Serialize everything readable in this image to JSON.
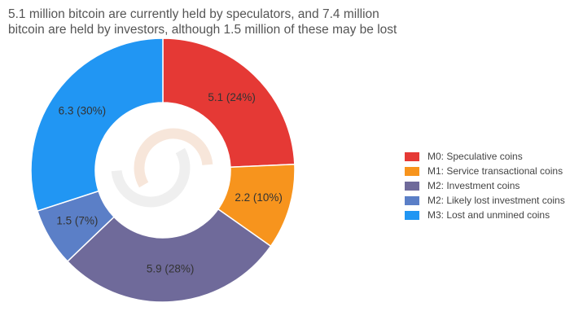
{
  "title": {
    "line1": "5.1 million bitcoin are currently held by speculators, and 7.4 million",
    "line2": "bitcoin are held by investors, although 1.5 million of these may be lost"
  },
  "chart_data": {
    "type": "pie",
    "donut": true,
    "title": "5.1 million bitcoin are currently held by speculators, and 7.4 million bitcoin are held by investors, although 1.5 million of these may be lost",
    "legend_position": "right",
    "slices": [
      {
        "name": "M0: Speculative coins",
        "value": 5.1,
        "percent": 24,
        "label": "5.1 (24%)",
        "color": "#e53935"
      },
      {
        "name": "M1: Service transactional coins",
        "value": 2.2,
        "percent": 10,
        "label": "2.2 (10%)",
        "color": "#f7941d"
      },
      {
        "name": "M2: Investment coins",
        "value": 5.9,
        "percent": 28,
        "label": "5.9 (28%)",
        "color": "#6f6a9a"
      },
      {
        "name": "M2: Likely lost investment coins",
        "value": 1.5,
        "percent": 7,
        "label": "1.5 (7%)",
        "color": "#5b7fc7"
      },
      {
        "name": "M3: Lost and unmined coins",
        "value": 6.3,
        "percent": 30,
        "label": "6.3 (30%)",
        "color": "#2196f3"
      }
    ]
  },
  "center_logo": "interlocking-rings-logo"
}
